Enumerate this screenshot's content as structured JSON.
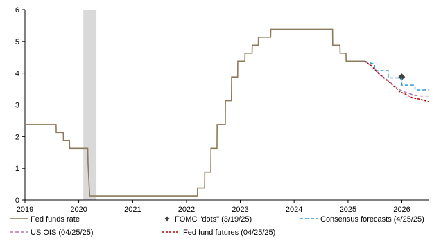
{
  "chart_data": {
    "type": "line",
    "title": "",
    "xlabel": "",
    "ylabel": "",
    "ylim": [
      0,
      6
    ],
    "xlim": [
      "2019-01-01",
      "2026-07-01"
    ],
    "y_ticks": [
      "0",
      "1",
      "2",
      "3",
      "4",
      "5",
      "6"
    ],
    "x_ticks": [
      {
        "date": "2019-01-01",
        "label": "2019"
      },
      {
        "date": "2020-01-01",
        "label": "2020"
      },
      {
        "date": "2021-01-01",
        "label": "2021"
      },
      {
        "date": "2022-01-01",
        "label": "2022"
      },
      {
        "date": "2023-01-01",
        "label": "2023"
      },
      {
        "date": "2024-01-01",
        "label": "2024"
      },
      {
        "date": "2025-01-01",
        "label": "2025"
      },
      {
        "date": "2026-01-01",
        "label": "2026"
      }
    ],
    "grid": false,
    "legend_position": "bottom",
    "shaded_regions": [
      {
        "start": "2020-02-01",
        "end": "2020-04-30",
        "color": "#d9d9d9"
      }
    ],
    "series": [
      {
        "name": "Fed funds rate",
        "style": "solid",
        "color": "#8b7a5b",
        "points": [
          [
            "2019-01-01",
            2.38
          ],
          [
            "2019-07-31",
            2.38
          ],
          [
            "2019-08-01",
            2.13
          ],
          [
            "2019-09-18",
            2.13
          ],
          [
            "2019-09-19",
            1.88
          ],
          [
            "2019-10-30",
            1.88
          ],
          [
            "2019-10-31",
            1.63
          ],
          [
            "2020-03-02",
            1.63
          ],
          [
            "2020-03-04",
            1.13
          ],
          [
            "2020-03-15",
            0.13
          ],
          [
            "2022-03-16",
            0.13
          ],
          [
            "2022-03-17",
            0.38
          ],
          [
            "2022-05-04",
            0.38
          ],
          [
            "2022-05-05",
            0.88
          ],
          [
            "2022-06-15",
            0.88
          ],
          [
            "2022-06-16",
            1.63
          ],
          [
            "2022-07-27",
            1.63
          ],
          [
            "2022-07-28",
            2.38
          ],
          [
            "2022-09-21",
            2.38
          ],
          [
            "2022-09-22",
            3.13
          ],
          [
            "2022-11-02",
            3.13
          ],
          [
            "2022-11-03",
            3.88
          ],
          [
            "2022-12-14",
            3.88
          ],
          [
            "2022-12-15",
            4.38
          ],
          [
            "2023-02-01",
            4.38
          ],
          [
            "2023-02-02",
            4.63
          ],
          [
            "2023-03-22",
            4.63
          ],
          [
            "2023-03-23",
            4.88
          ],
          [
            "2023-05-03",
            4.88
          ],
          [
            "2023-05-04",
            5.13
          ],
          [
            "2023-07-26",
            5.13
          ],
          [
            "2023-07-27",
            5.38
          ],
          [
            "2024-09-18",
            5.38
          ],
          [
            "2024-09-19",
            4.88
          ],
          [
            "2024-11-07",
            4.88
          ],
          [
            "2024-11-08",
            4.63
          ],
          [
            "2024-12-18",
            4.63
          ],
          [
            "2024-12-19",
            4.38
          ],
          [
            "2025-04-25",
            4.38
          ]
        ]
      },
      {
        "name": "FOMC \"dots\" (3/19/25)",
        "style": "marker",
        "color": "#404040",
        "points": [
          [
            "2025-12-31",
            3.88
          ]
        ]
      },
      {
        "name": "Consensus forecasts (4/25/25)",
        "style": "dashed",
        "color": "#2e9bd6",
        "points": [
          [
            "2025-04-25",
            4.38
          ],
          [
            "2025-06-30",
            4.28
          ],
          [
            "2025-07-01",
            4.08
          ],
          [
            "2025-09-30",
            4.08
          ],
          [
            "2025-10-01",
            3.85
          ],
          [
            "2025-12-31",
            3.85
          ],
          [
            "2026-01-01",
            3.62
          ],
          [
            "2026-03-31",
            3.62
          ],
          [
            "2026-04-01",
            3.47
          ],
          [
            "2026-06-30",
            3.47
          ]
        ]
      },
      {
        "name": "US OIS (04/25/25)",
        "style": "dashed",
        "color": "#b07aa8",
        "points": [
          [
            "2025-04-25",
            4.38
          ],
          [
            "2025-06-15",
            4.22
          ],
          [
            "2025-08-01",
            3.98
          ],
          [
            "2025-09-15",
            3.82
          ],
          [
            "2025-11-01",
            3.64
          ],
          [
            "2025-12-15",
            3.48
          ],
          [
            "2026-02-01",
            3.38
          ],
          [
            "2026-03-15",
            3.32
          ],
          [
            "2026-05-01",
            3.28
          ],
          [
            "2026-06-30",
            3.28
          ]
        ]
      },
      {
        "name": "Fed fund futures (04/25/25)",
        "style": "dashed",
        "color": "#c00000",
        "points": [
          [
            "2025-04-25",
            4.38
          ],
          [
            "2025-06-15",
            4.2
          ],
          [
            "2025-08-01",
            3.96
          ],
          [
            "2025-09-15",
            3.8
          ],
          [
            "2025-11-01",
            3.62
          ],
          [
            "2025-12-15",
            3.42
          ],
          [
            "2026-02-01",
            3.32
          ],
          [
            "2026-03-15",
            3.22
          ],
          [
            "2026-05-01",
            3.18
          ],
          [
            "2026-06-30",
            3.1
          ]
        ]
      }
    ]
  }
}
